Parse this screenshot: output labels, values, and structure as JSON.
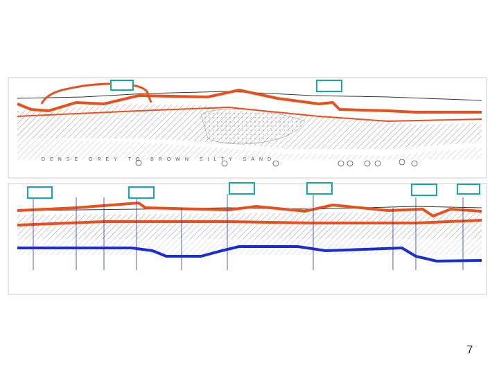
{
  "page_number": "7",
  "sections": [
    {
      "layer_label": "DENSE GREY TO BROWN SILTY SAND"
    }
  ]
}
